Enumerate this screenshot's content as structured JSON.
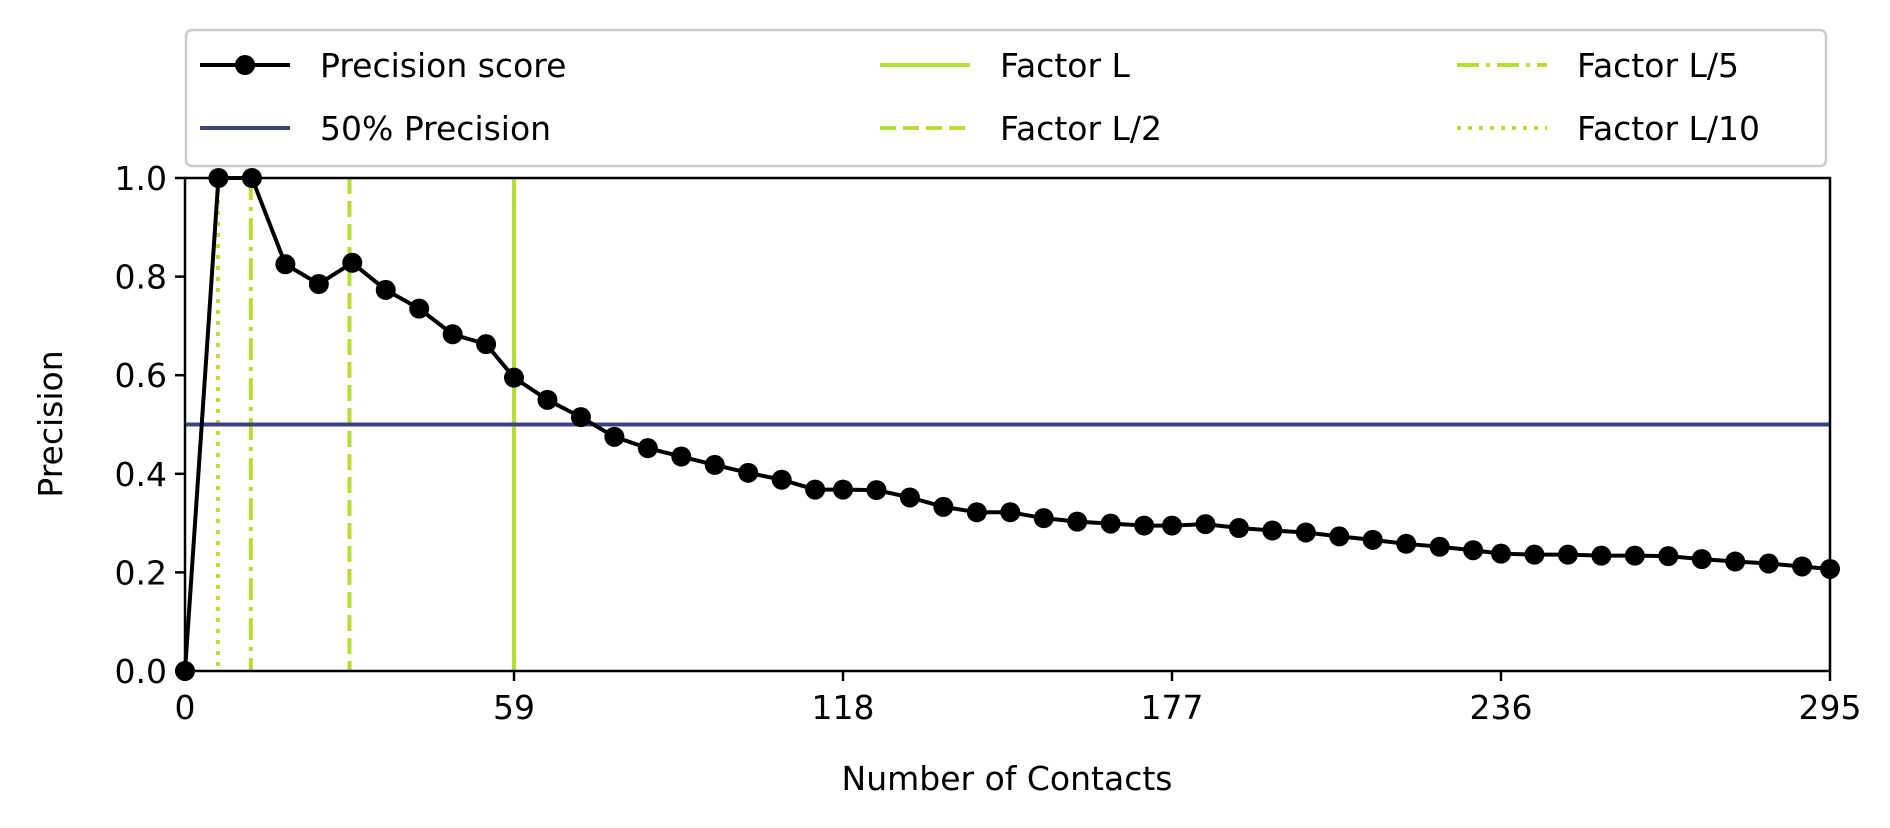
{
  "chart_data": {
    "type": "line",
    "xlabel": "Number of Contacts",
    "ylabel": "Precision",
    "xlim": [
      0,
      295
    ],
    "ylim": [
      0,
      1.0
    ],
    "xticks": [
      0,
      59,
      118,
      177,
      236,
      295
    ],
    "yticks": [
      "0.0",
      "0.2",
      "0.4",
      "0.6",
      "0.8",
      "1.0"
    ],
    "grid": false,
    "legend_position": "top",
    "series": [
      {
        "name": "Precision score",
        "color": "#000000",
        "marker": "circle",
        "x": [
          0,
          6,
          12,
          18,
          24,
          30,
          36,
          42,
          48,
          54,
          59,
          65,
          71,
          77,
          83,
          89,
          95,
          101,
          107,
          113,
          118,
          124,
          130,
          136,
          142,
          148,
          154,
          160,
          166,
          172,
          177,
          183,
          189,
          195,
          201,
          207,
          213,
          219,
          225,
          231,
          236,
          242,
          248,
          254,
          260,
          266,
          272,
          278,
          284,
          290,
          295
        ],
        "values": [
          0.0,
          1.0,
          1.0,
          0.825,
          0.785,
          0.828,
          0.773,
          0.735,
          0.683,
          0.663,
          0.595,
          0.55,
          0.515,
          0.475,
          0.452,
          0.435,
          0.418,
          0.402,
          0.388,
          0.368,
          0.368,
          0.367,
          0.352,
          0.333,
          0.322,
          0.322,
          0.31,
          0.303,
          0.299,
          0.295,
          0.295,
          0.298,
          0.29,
          0.285,
          0.281,
          0.273,
          0.266,
          0.258,
          0.252,
          0.245,
          0.238,
          0.236,
          0.236,
          0.234,
          0.234,
          0.233,
          0.227,
          0.222,
          0.218,
          0.212,
          0.207
        ]
      }
    ],
    "hlines": [
      {
        "name": "50% Precision",
        "y": 0.5,
        "color": "#3b4482",
        "style": "solid"
      }
    ],
    "vlines": [
      {
        "name": "Factor L",
        "x": 59,
        "color": "#b8dd34",
        "style": "solid"
      },
      {
        "name": "Factor L/2",
        "x": 29.5,
        "color": "#b8dd34",
        "style": "dashed"
      },
      {
        "name": "Factor L/5",
        "x": 11.8,
        "color": "#b8dd34",
        "style": "dashdot"
      },
      {
        "name": "Factor L/10",
        "x": 5.9,
        "color": "#b8dd34",
        "style": "dotted"
      }
    ],
    "legend": [
      "Precision score",
      "50% Precision",
      "Factor L",
      "Factor L/2",
      "Factor L/5",
      "Factor L/10"
    ]
  }
}
